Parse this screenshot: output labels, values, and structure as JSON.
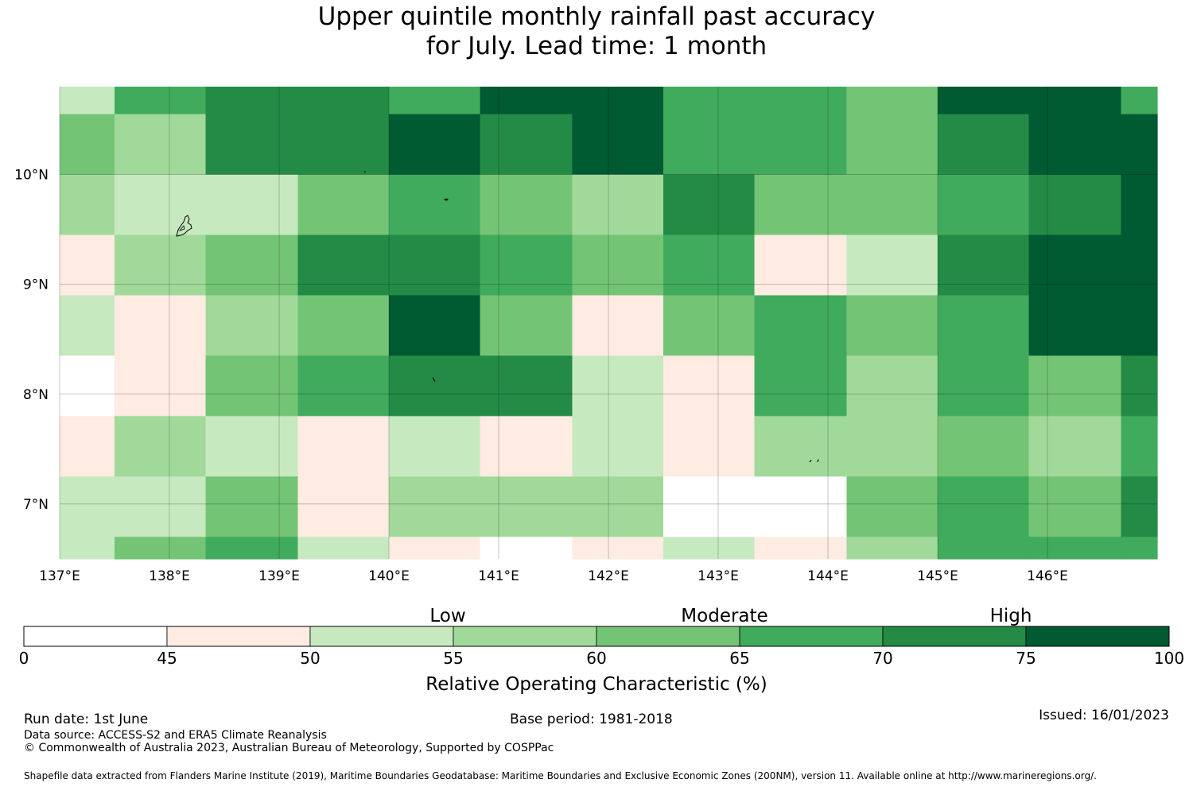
{
  "title": {
    "line1": "Upper quintile monthly rainfall past accuracy",
    "line2": "for July. Lead time: 1 month"
  },
  "map": {
    "lon_labels": [
      "137°E",
      "138°E",
      "139°E",
      "140°E",
      "141°E",
      "142°E",
      "143°E",
      "144°E",
      "145°E",
      "146°E"
    ],
    "lat_labels": [
      "10°N",
      "9°N",
      "8°N",
      "7°N"
    ],
    "lon_values": [
      137,
      138,
      139,
      140,
      141,
      142,
      143,
      144,
      145,
      146
    ],
    "lat_values": [
      10,
      9,
      8,
      7
    ],
    "lon_range": [
      137.0,
      147.0
    ],
    "lat_range": [
      6.5,
      10.8
    ],
    "gridlines": true,
    "palette": [
      "#ffffff",
      "#feebe2",
      "#c7e9c0",
      "#a1d99b",
      "#74c476",
      "#41ab5d",
      "#238b45",
      "#005a32"
    ],
    "cell_edges_lon": [
      137.0,
      137.5,
      138.33,
      139.17,
      140.0,
      140.83,
      141.67,
      142.5,
      143.33,
      144.17,
      145.0,
      145.83,
      146.67,
      147.0
    ],
    "cell_edges_lat": [
      10.8,
      10.55,
      10.0,
      9.45,
      8.9,
      8.35,
      7.8,
      7.25,
      6.7,
      6.5
    ],
    "cell_classes": [
      [
        2,
        5,
        6,
        6,
        5,
        7,
        7,
        5,
        5,
        4,
        7,
        7,
        5
      ],
      [
        4,
        3,
        6,
        6,
        7,
        6,
        7,
        5,
        5,
        4,
        6,
        7,
        7
      ],
      [
        3,
        2,
        2,
        4,
        5,
        4,
        3,
        6,
        4,
        4,
        5,
        6,
        7
      ],
      [
        1,
        3,
        4,
        6,
        6,
        5,
        4,
        5,
        1,
        2,
        6,
        7,
        7
      ],
      [
        2,
        1,
        3,
        4,
        7,
        4,
        1,
        4,
        5,
        4,
        5,
        7,
        7
      ],
      [
        0,
        1,
        4,
        5,
        6,
        6,
        2,
        1,
        5,
        3,
        5,
        4,
        6
      ],
      [
        1,
        3,
        2,
        1,
        2,
        1,
        2,
        1,
        3,
        3,
        4,
        3,
        5
      ],
      [
        2,
        2,
        4,
        1,
        3,
        3,
        3,
        0,
        0,
        4,
        5,
        4,
        6
      ],
      [
        2,
        4,
        5,
        2,
        1,
        0,
        1,
        2,
        1,
        3,
        5,
        5,
        5
      ]
    ]
  },
  "colorbar": {
    "tick_values": [
      0,
      45,
      50,
      55,
      60,
      65,
      70,
      75,
      100
    ],
    "tick_labels": [
      "0",
      "45",
      "50",
      "55",
      "60",
      "65",
      "70",
      "75",
      "100"
    ],
    "category_labels": [
      "Low",
      "Moderate",
      "High"
    ],
    "title": "Relative Operating Characteristic (%)"
  },
  "footer": {
    "run_date": "Run date: 1st June",
    "base_period": "Base period: 1981-2018",
    "issued": "Issued: 16/01/2023",
    "data_source": "Data source: ACCESS-S2 and ERA5 Climate Reanalysis",
    "copyright": "© Commonwealth of Australia 2023, Australian Bureau of Meteorology, Supported by COSPPac",
    "shapefile": "Shapefile data extracted from Flanders Marine Institute (2019), Maritime Boundaries Geodatabase: Maritime Boundaries and Exclusive Economic Zones (200NM), version 11. Available online at http://www.marineregions.org/."
  }
}
